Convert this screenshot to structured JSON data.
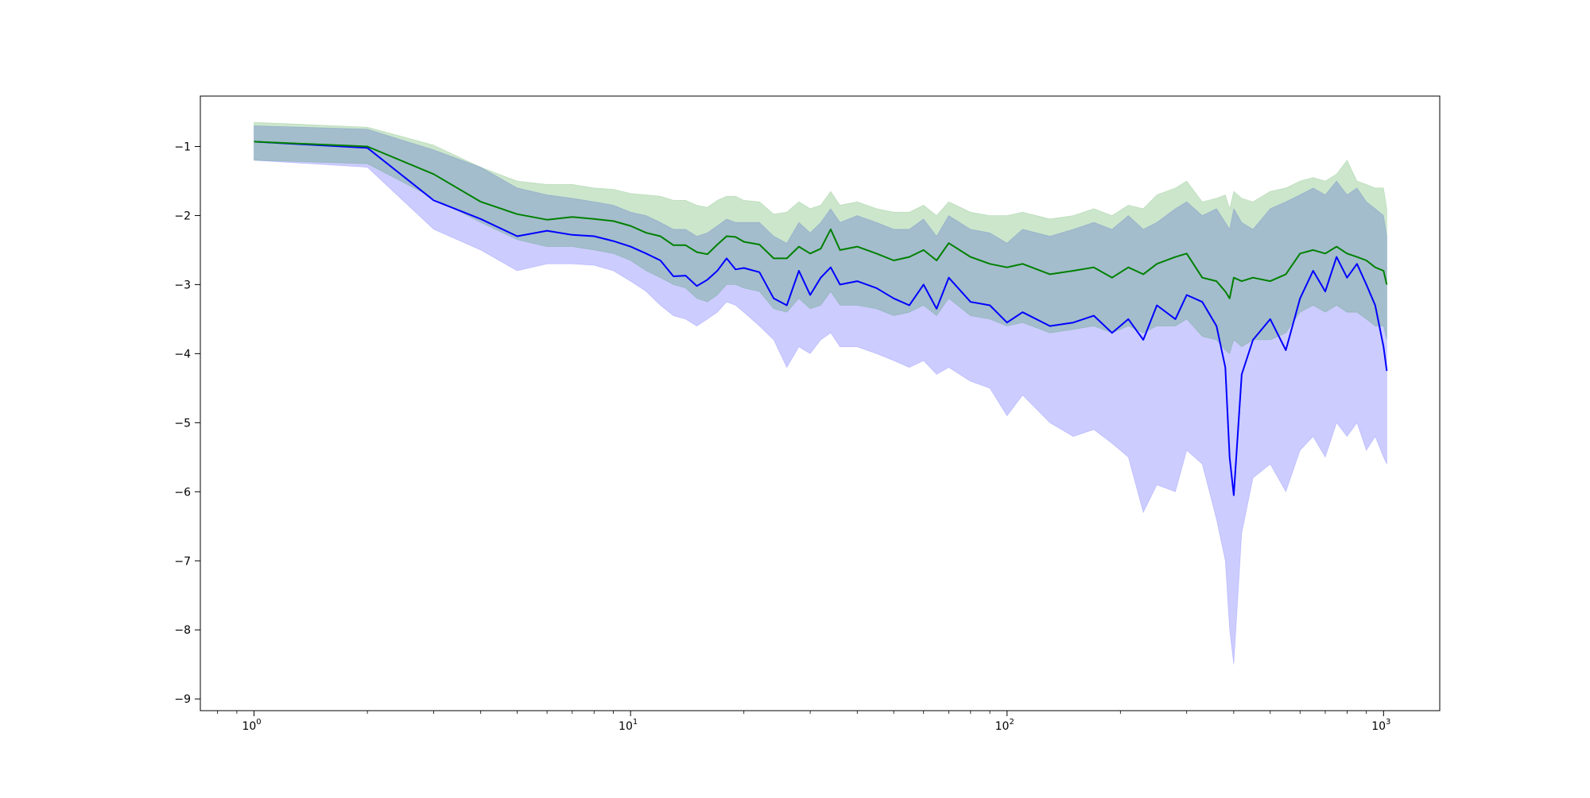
{
  "colors": {
    "series_a": "#0000ff",
    "series_b": "#008000",
    "band_a": "#0000ff",
    "band_b": "#008000",
    "axes": "#000000",
    "background": "#ffffff"
  },
  "chart_data": {
    "type": "line",
    "title": "",
    "xlabel": "",
    "ylabel": "",
    "x_scale": "log",
    "xlim": [
      0.72,
      1410
    ],
    "ylim": [
      -9.17,
      -0.27
    ],
    "grid": false,
    "legend": "none",
    "x_ticks": [
      {
        "value": 1,
        "base": "10",
        "exp": "0"
      },
      {
        "value": 10,
        "base": "10",
        "exp": "1"
      },
      {
        "value": 100,
        "base": "10",
        "exp": "2"
      },
      {
        "value": 1000,
        "base": "10",
        "exp": "3"
      }
    ],
    "y_ticks": [
      -1,
      -2,
      -3,
      -4,
      -5,
      -6,
      -7,
      -8,
      -9
    ],
    "series": [
      {
        "color": "#0000ff",
        "x": [
          1,
          2,
          3,
          4,
          5,
          6,
          7,
          8,
          9,
          10,
          11,
          12,
          13,
          14,
          15,
          16,
          17,
          18,
          19,
          20,
          22,
          24,
          26,
          28,
          30,
          32,
          34,
          36,
          40,
          45,
          50,
          55,
          60,
          65,
          70,
          80,
          90,
          100,
          110,
          130,
          150,
          170,
          190,
          210,
          230,
          250,
          280,
          300,
          330,
          360,
          380,
          390,
          400,
          420,
          450,
          500,
          550,
          600,
          650,
          700,
          750,
          800,
          850,
          900,
          950,
          1000,
          1020
        ],
        "values": [
          -0.93,
          -1.02,
          -1.78,
          -2.05,
          -2.3,
          -2.22,
          -2.28,
          -2.3,
          -2.37,
          -2.45,
          -2.55,
          -2.65,
          -2.88,
          -2.87,
          -3.02,
          -2.93,
          -2.8,
          -2.62,
          -2.78,
          -2.76,
          -2.82,
          -3.2,
          -3.3,
          -2.8,
          -3.15,
          -2.9,
          -2.75,
          -3.0,
          -2.95,
          -3.05,
          -3.2,
          -3.3,
          -3.0,
          -3.35,
          -2.9,
          -3.25,
          -3.3,
          -3.55,
          -3.4,
          -3.6,
          -3.55,
          -3.45,
          -3.7,
          -3.5,
          -3.8,
          -3.3,
          -3.5,
          -3.15,
          -3.25,
          -3.6,
          -4.2,
          -5.5,
          -6.05,
          -4.3,
          -3.8,
          -3.5,
          -3.95,
          -3.2,
          -2.8,
          -3.1,
          -2.6,
          -2.9,
          -2.7,
          -3.0,
          -3.3,
          -3.9,
          -4.25
        ]
      },
      {
        "color": "#008000",
        "x": [
          1,
          2,
          3,
          4,
          5,
          6,
          7,
          8,
          9,
          10,
          11,
          12,
          13,
          14,
          15,
          16,
          17,
          18,
          19,
          20,
          22,
          24,
          26,
          28,
          30,
          32,
          34,
          36,
          40,
          45,
          50,
          55,
          60,
          65,
          70,
          80,
          90,
          100,
          110,
          130,
          150,
          170,
          190,
          210,
          230,
          250,
          280,
          300,
          330,
          360,
          380,
          390,
          400,
          420,
          450,
          500,
          550,
          600,
          650,
          700,
          750,
          800,
          850,
          900,
          950,
          1000,
          1020
        ],
        "values": [
          -0.93,
          -1.0,
          -1.4,
          -1.8,
          -1.98,
          -2.06,
          -2.02,
          -2.05,
          -2.08,
          -2.15,
          -2.25,
          -2.3,
          -2.43,
          -2.43,
          -2.53,
          -2.56,
          -2.42,
          -2.3,
          -2.31,
          -2.38,
          -2.42,
          -2.62,
          -2.62,
          -2.45,
          -2.55,
          -2.48,
          -2.2,
          -2.5,
          -2.45,
          -2.55,
          -2.65,
          -2.6,
          -2.5,
          -2.65,
          -2.4,
          -2.6,
          -2.7,
          -2.75,
          -2.7,
          -2.85,
          -2.8,
          -2.75,
          -2.9,
          -2.75,
          -2.85,
          -2.7,
          -2.6,
          -2.55,
          -2.9,
          -2.95,
          -3.1,
          -3.2,
          -2.9,
          -2.95,
          -2.9,
          -2.95,
          -2.85,
          -2.55,
          -2.5,
          -2.55,
          -2.45,
          -2.55,
          -2.6,
          -2.65,
          -2.75,
          -2.8,
          -3.0
        ]
      }
    ],
    "bands": [
      {
        "color": "#0000ff",
        "x": [
          1,
          2,
          3,
          4,
          5,
          6,
          7,
          8,
          9,
          10,
          11,
          12,
          13,
          14,
          15,
          16,
          17,
          18,
          19,
          20,
          22,
          24,
          26,
          28,
          30,
          32,
          34,
          36,
          40,
          45,
          50,
          55,
          60,
          65,
          70,
          80,
          90,
          100,
          110,
          130,
          150,
          170,
          190,
          210,
          230,
          250,
          280,
          300,
          330,
          360,
          380,
          390,
          400,
          420,
          450,
          500,
          550,
          600,
          650,
          700,
          750,
          800,
          850,
          900,
          950,
          1000,
          1020
        ],
        "lower": [
          -1.2,
          -1.3,
          -2.2,
          -2.5,
          -2.8,
          -2.7,
          -2.7,
          -2.72,
          -2.8,
          -2.95,
          -3.1,
          -3.3,
          -3.45,
          -3.5,
          -3.6,
          -3.5,
          -3.4,
          -3.25,
          -3.3,
          -3.4,
          -3.6,
          -3.8,
          -4.2,
          -3.9,
          -4.0,
          -3.8,
          -3.7,
          -3.9,
          -3.9,
          -4.0,
          -4.1,
          -4.2,
          -4.1,
          -4.3,
          -4.2,
          -4.4,
          -4.5,
          -4.9,
          -4.6,
          -5.0,
          -5.2,
          -5.1,
          -5.3,
          -5.5,
          -6.3,
          -5.9,
          -6.0,
          -5.4,
          -5.6,
          -6.4,
          -7.0,
          -8.0,
          -8.5,
          -6.6,
          -5.8,
          -5.6,
          -6.0,
          -5.4,
          -5.2,
          -5.5,
          -5.0,
          -5.2,
          -5.0,
          -5.4,
          -5.2,
          -5.5,
          -5.6
        ],
        "upper": [
          -0.7,
          -0.75,
          -1.05,
          -1.3,
          -1.6,
          -1.7,
          -1.75,
          -1.8,
          -1.85,
          -1.95,
          -2.0,
          -2.1,
          -2.2,
          -2.2,
          -2.3,
          -2.25,
          -2.15,
          -2.05,
          -2.1,
          -2.1,
          -2.1,
          -2.3,
          -2.4,
          -2.1,
          -2.25,
          -2.1,
          -1.9,
          -2.1,
          -2.0,
          -2.1,
          -2.2,
          -2.2,
          -2.05,
          -2.3,
          -2.0,
          -2.2,
          -2.25,
          -2.4,
          -2.2,
          -2.3,
          -2.2,
          -2.1,
          -2.2,
          -2.0,
          -2.2,
          -2.1,
          -1.9,
          -1.8,
          -2.0,
          -1.9,
          -2.1,
          -2.2,
          -1.9,
          -2.1,
          -2.2,
          -1.9,
          -1.8,
          -1.7,
          -1.6,
          -1.7,
          -1.5,
          -1.7,
          -1.6,
          -1.8,
          -1.9,
          -2.0,
          -2.3
        ]
      },
      {
        "color": "#008000",
        "x": [
          1,
          2,
          3,
          4,
          5,
          6,
          7,
          8,
          9,
          10,
          11,
          12,
          13,
          14,
          15,
          16,
          17,
          18,
          19,
          20,
          22,
          24,
          26,
          28,
          30,
          32,
          34,
          36,
          40,
          45,
          50,
          55,
          60,
          65,
          70,
          80,
          90,
          100,
          110,
          130,
          150,
          170,
          190,
          210,
          230,
          250,
          280,
          300,
          330,
          360,
          380,
          390,
          400,
          420,
          450,
          500,
          550,
          600,
          650,
          700,
          750,
          800,
          850,
          900,
          950,
          1000,
          1020
        ],
        "lower": [
          -1.2,
          -1.25,
          -1.75,
          -2.1,
          -2.35,
          -2.45,
          -2.45,
          -2.5,
          -2.55,
          -2.65,
          -2.8,
          -2.9,
          -3.0,
          -3.05,
          -3.2,
          -3.25,
          -3.15,
          -3.0,
          -3.0,
          -3.05,
          -3.1,
          -3.35,
          -3.4,
          -3.2,
          -3.35,
          -3.3,
          -3.1,
          -3.3,
          -3.3,
          -3.35,
          -3.45,
          -3.4,
          -3.3,
          -3.45,
          -3.2,
          -3.45,
          -3.5,
          -3.6,
          -3.55,
          -3.7,
          -3.65,
          -3.6,
          -3.7,
          -3.6,
          -3.7,
          -3.6,
          -3.6,
          -3.5,
          -3.75,
          -3.8,
          -3.95,
          -4.0,
          -3.8,
          -3.9,
          -3.8,
          -3.8,
          -3.7,
          -3.4,
          -3.3,
          -3.4,
          -3.3,
          -3.4,
          -3.4,
          -3.5,
          -3.6,
          -3.6,
          -3.8
        ],
        "upper": [
          -0.65,
          -0.72,
          -0.98,
          -1.3,
          -1.5,
          -1.55,
          -1.55,
          -1.6,
          -1.62,
          -1.68,
          -1.7,
          -1.72,
          -1.78,
          -1.78,
          -1.85,
          -1.88,
          -1.78,
          -1.72,
          -1.72,
          -1.78,
          -1.8,
          -1.98,
          -1.95,
          -1.8,
          -1.9,
          -1.85,
          -1.65,
          -1.85,
          -1.8,
          -1.9,
          -1.95,
          -1.95,
          -1.85,
          -2.0,
          -1.8,
          -1.95,
          -2.0,
          -2.0,
          -1.95,
          -2.05,
          -2.0,
          -1.9,
          -2.0,
          -1.85,
          -1.9,
          -1.7,
          -1.6,
          -1.5,
          -1.8,
          -1.75,
          -1.7,
          -1.9,
          -1.65,
          -1.75,
          -1.8,
          -1.65,
          -1.6,
          -1.5,
          -1.45,
          -1.5,
          -1.4,
          -1.2,
          -1.5,
          -1.55,
          -1.6,
          -1.6,
          -1.9
        ]
      }
    ]
  }
}
